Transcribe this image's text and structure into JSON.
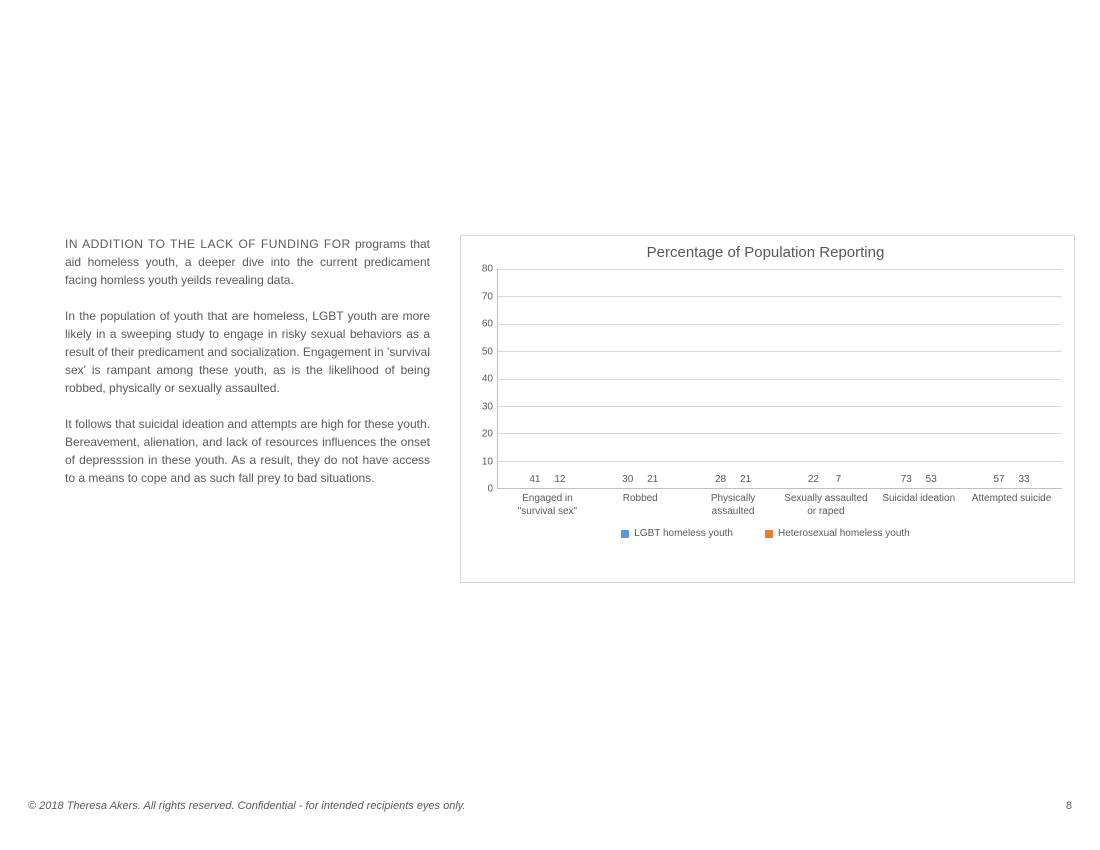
{
  "text": {
    "p1_intro": "IN ADDITION TO THE LACK OF FUNDING FOR",
    "p1_rest": " programs that aid homeless youth, a deeper dive into the current predicament facing homless youth yeilds revealing data.",
    "p2": "In the population of youth that are homeless, LGBT youth are more likely in a sweeping study to engage in risky sexual behaviors as a result of their predicament and socialization. Engagement in 'survival sex' is rampant among these youth, as is the likelihood of being robbed, physically or sexually assaulted.",
    "p3": "It follows that suicidal ideation and attempts are high for these youth. Bereavement, alienation, and lack of resources influences the onset of depresssion in these youth. As a result, they do not have access to a means to cope and as such fall prey to bad situations."
  },
  "chart": {
    "type": "bar",
    "title": "Percentage of Population Reporting",
    "ylim": [
      0,
      80
    ],
    "ytick_step": 10,
    "yticks": [
      0,
      10,
      20,
      30,
      40,
      50,
      60,
      70,
      80
    ],
    "categories": [
      "Engaged in \"survival sex\"",
      "Robbed",
      "Physically assaulted",
      "Sexually assaulted or raped",
      "Suicidal ideation",
      "Attempted suicide"
    ],
    "series": [
      {
        "name": "LGBT homeless youth",
        "color": "#5b9bd5",
        "values": [
          41,
          30,
          28,
          22,
          73,
          57
        ]
      },
      {
        "name": "Heterosexual homeless youth",
        "color": "#ed7d31",
        "values": [
          12,
          21,
          21,
          7,
          53,
          33
        ]
      }
    ],
    "grid_color": "#d9d9d9",
    "axis_color": "#bfbfbf",
    "label_fontsize": 10,
    "title_fontsize": 15,
    "background_color": "#ffffff"
  },
  "footer": {
    "copyright": "© 2018 Theresa Akers. All rights reserved. Confidential - for intended recipients eyes only.",
    "page_number": "8"
  }
}
